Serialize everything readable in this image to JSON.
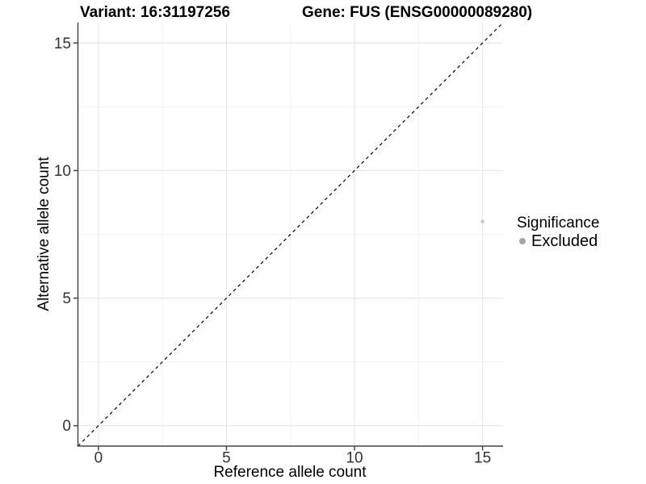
{
  "chart_data": {
    "type": "scatter",
    "title_variant": "Variant: 16:31197256",
    "title_gene": "Gene: FUS (ENSG00000089280)",
    "xlabel": "Reference allele count",
    "ylabel": "Alternative allele count",
    "xlim": [
      -0.8,
      15.8
    ],
    "ylim": [
      -0.8,
      15.8
    ],
    "x_ticks": [
      0,
      5,
      10,
      15
    ],
    "y_ticks": [
      0,
      5,
      10,
      15
    ],
    "x_minor_ticks": [
      2.5,
      7.5,
      12.5
    ],
    "y_minor_ticks": [
      2.5,
      7.5,
      12.5
    ],
    "grid": "major+minor",
    "identity_line": {
      "style": "dashed",
      "from": [
        -0.8,
        -0.8
      ],
      "to": [
        15.8,
        15.8
      ],
      "color": "#000000"
    },
    "points": [
      {
        "x": 15,
        "y": 8,
        "series": "Excluded",
        "color": "#c6c6c6",
        "radius": 2.2
      }
    ],
    "legend": {
      "position": "right",
      "title": "Significance",
      "entries": [
        {
          "label": "Excluded",
          "color": "#a6a6a6"
        }
      ]
    },
    "style": {
      "background": "#ffffff",
      "grid_major": "#e4e4e4",
      "grid_minor": "#f3f3f3",
      "axis_line": "#474747",
      "tick_color": "#474747",
      "tick_label_color": "#333333",
      "tick_label_size": 19
    }
  }
}
